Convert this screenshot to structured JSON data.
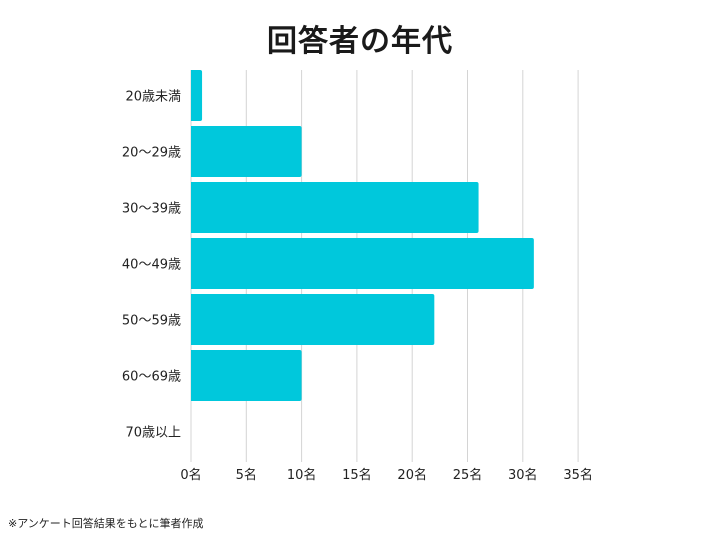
{
  "chart_data": {
    "type": "bar",
    "orientation": "horizontal",
    "title": "回答者の年代",
    "categories": [
      "20歳未満",
      "20〜29歳",
      "30〜39歳",
      "40〜49歳",
      "50〜59歳",
      "60〜69歳",
      "70歳以上"
    ],
    "values": [
      1,
      10,
      26,
      31,
      22,
      10,
      0
    ],
    "xlim": [
      0,
      35
    ],
    "xticks": [
      0,
      5,
      10,
      15,
      20,
      25,
      30,
      35
    ],
    "xtick_labels": [
      "0名",
      "5名",
      "10名",
      "15名",
      "20名",
      "25名",
      "30名",
      "35名"
    ],
    "xlabel": "",
    "ylabel": "",
    "grid": true,
    "bar_color": "#00C8DC",
    "grid_color": "#D4D4D4"
  },
  "footnote": "※アンケート回答結果をもとに筆者作成"
}
